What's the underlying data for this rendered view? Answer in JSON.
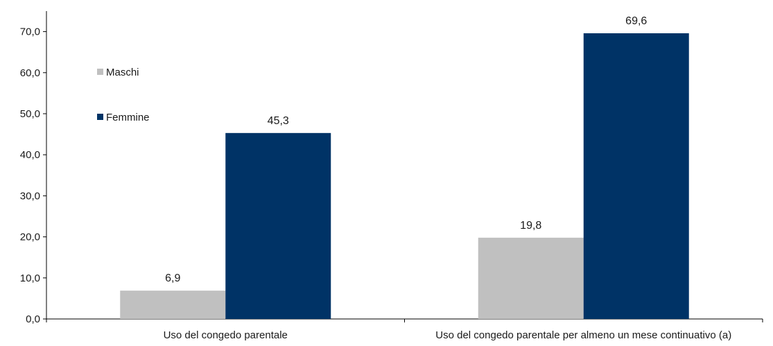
{
  "chart_data": {
    "type": "bar",
    "categories": [
      "Uso del congedo parentale",
      "Uso del congedo parentale per almeno un mese continuativo (a)"
    ],
    "series": [
      {
        "name": "Maschi",
        "values": [
          6.9,
          19.8
        ],
        "labels": [
          "6,9",
          "19,8"
        ],
        "color": "#c0c0c0"
      },
      {
        "name": "Femmine",
        "values": [
          45.3,
          69.6
        ],
        "labels": [
          "45,3",
          "69,6"
        ],
        "color": "#003366"
      }
    ],
    "ylim": [
      0,
      75
    ],
    "yticks": [
      0,
      10,
      20,
      30,
      40,
      50,
      60,
      70
    ],
    "ytick_labels": [
      "0,0",
      "10,0",
      "20,0",
      "30,0",
      "40,0",
      "50,0",
      "60,0",
      "70,0"
    ],
    "title": "",
    "xlabel": "",
    "ylabel": "",
    "grid": false,
    "legend_position": "top-left"
  }
}
